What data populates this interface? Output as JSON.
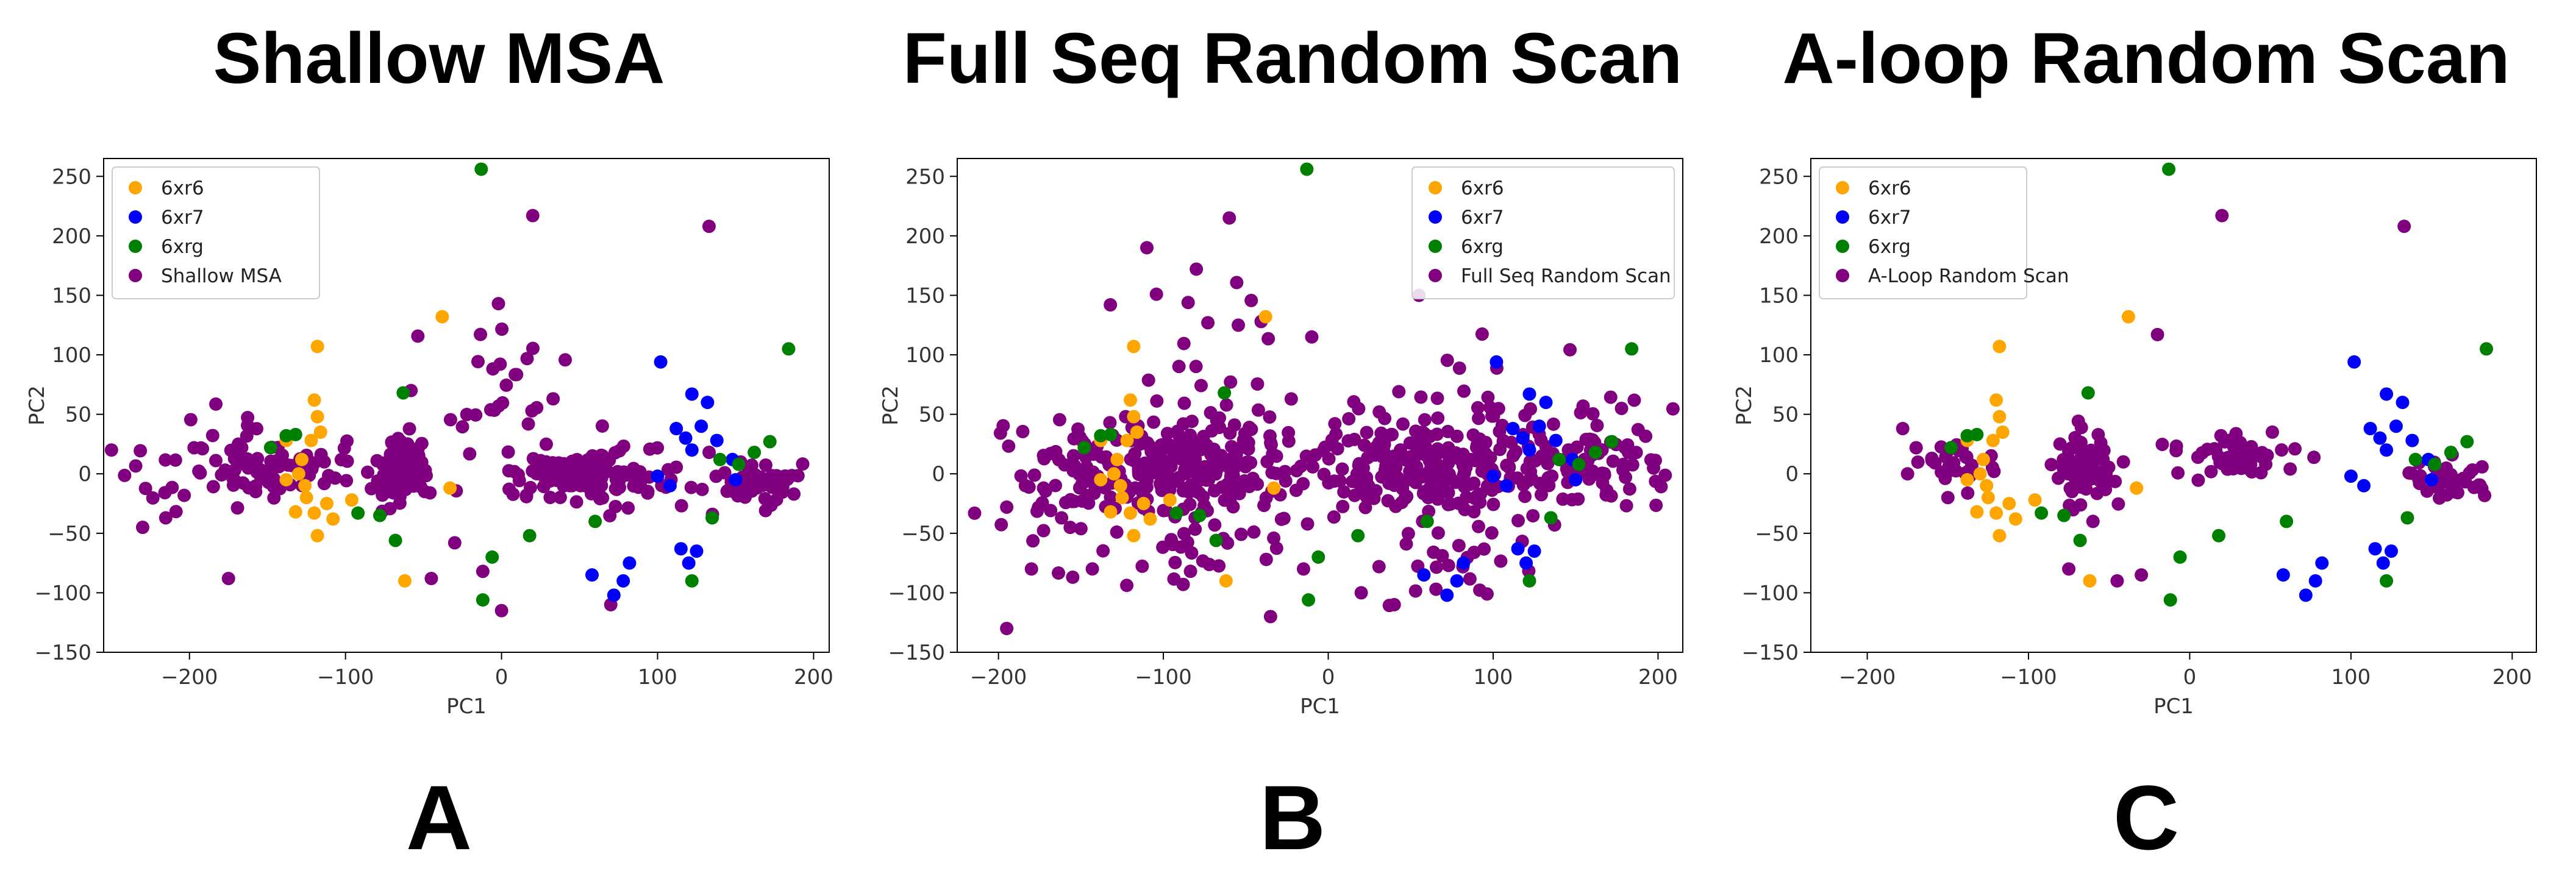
{
  "colors": {
    "6xr6": "#ffa500",
    "6xr7": "#0000ff",
    "6xrg": "#008000",
    "sample": "#800080"
  },
  "chart_data": [
    {
      "type": "scatter",
      "title": "Shallow MSA",
      "panel_label": "A",
      "xlabel": "PC1",
      "ylabel": "PC2",
      "xlim": [
        -255,
        210
      ],
      "ylim": [
        -150,
        265
      ],
      "xticks": [
        -200,
        -100,
        0,
        100,
        200
      ],
      "yticks": [
        -150,
        -100,
        -50,
        0,
        50,
        100,
        150,
        200,
        250
      ],
      "legend_position": "top-left",
      "series": [
        {
          "name": "6xr6",
          "color": "#ffa500",
          "points": [
            [
              -118,
              107
            ],
            [
              -120,
              62
            ],
            [
              -118,
              48
            ],
            [
              -116,
              35
            ],
            [
              -122,
              28
            ],
            [
              -138,
              28
            ],
            [
              -128,
              12
            ],
            [
              -130,
              0
            ],
            [
              -138,
              -5
            ],
            [
              -125,
              -20
            ],
            [
              -132,
              -32
            ],
            [
              -120,
              -33
            ],
            [
              -108,
              -38
            ],
            [
              -118,
              -52
            ],
            [
              -96,
              -22
            ],
            [
              -38,
              132
            ],
            [
              -33,
              -12
            ],
            [
              -62,
              -90
            ],
            [
              -126,
              -10
            ],
            [
              -112,
              -25
            ]
          ]
        },
        {
          "name": "6xr7",
          "color": "#0000ff",
          "points": [
            [
              102,
              94
            ],
            [
              122,
              67
            ],
            [
              132,
              60
            ],
            [
              112,
              38
            ],
            [
              128,
              40
            ],
            [
              138,
              28
            ],
            [
              118,
              30
            ],
            [
              122,
              20
            ],
            [
              148,
              12
            ],
            [
              100,
              -2
            ],
            [
              150,
              -5
            ],
            [
              108,
              -10
            ],
            [
              58,
              -85
            ],
            [
              78,
              -90
            ],
            [
              72,
              -102
            ],
            [
              115,
              -63
            ],
            [
              125,
              -65
            ],
            [
              120,
              -75
            ],
            [
              82,
              -75
            ]
          ]
        },
        {
          "name": "6xrg",
          "color": "#008000",
          "points": [
            [
              -13,
              256
            ],
            [
              184,
              105
            ],
            [
              172,
              27
            ],
            [
              162,
              18
            ],
            [
              140,
              12
            ],
            [
              -148,
              22
            ],
            [
              -138,
              32
            ],
            [
              -132,
              33
            ],
            [
              -63,
              68
            ],
            [
              -68,
              -56
            ],
            [
              -92,
              -33
            ],
            [
              -78,
              -35
            ],
            [
              -12,
              -106
            ],
            [
              -6,
              -70
            ],
            [
              18,
              -52
            ],
            [
              60,
              -40
            ],
            [
              122,
              -90
            ],
            [
              135,
              -37
            ],
            [
              152,
              8
            ]
          ]
        },
        {
          "name": "Shallow MSA",
          "color": "#800080"
        }
      ]
    },
    {
      "type": "scatter",
      "title": "Full Seq Random Scan",
      "panel_label": "B",
      "xlabel": "PC1",
      "ylabel": "PC2",
      "xlim": [
        -225,
        215
      ],
      "ylim": [
        -150,
        265
      ],
      "xticks": [
        -200,
        -100,
        0,
        100,
        200
      ],
      "yticks": [
        -150,
        -100,
        -50,
        0,
        50,
        100,
        150,
        200,
        250
      ],
      "legend_position": "top-right",
      "series": [
        {
          "name": "6xr6",
          "color": "#ffa500",
          "points": [
            [
              -118,
              107
            ],
            [
              -120,
              62
            ],
            [
              -118,
              48
            ],
            [
              -116,
              35
            ],
            [
              -122,
              28
            ],
            [
              -138,
              28
            ],
            [
              -128,
              12
            ],
            [
              -130,
              0
            ],
            [
              -138,
              -5
            ],
            [
              -125,
              -20
            ],
            [
              -132,
              -32
            ],
            [
              -120,
              -33
            ],
            [
              -108,
              -38
            ],
            [
              -118,
              -52
            ],
            [
              -96,
              -22
            ],
            [
              -38,
              132
            ],
            [
              -33,
              -12
            ],
            [
              -62,
              -90
            ],
            [
              -126,
              -10
            ],
            [
              -112,
              -25
            ]
          ]
        },
        {
          "name": "6xr7",
          "color": "#0000ff",
          "points": [
            [
              102,
              94
            ],
            [
              122,
              67
            ],
            [
              132,
              60
            ],
            [
              112,
              38
            ],
            [
              128,
              40
            ],
            [
              138,
              28
            ],
            [
              118,
              30
            ],
            [
              122,
              20
            ],
            [
              148,
              12
            ],
            [
              100,
              -2
            ],
            [
              150,
              -5
            ],
            [
              108,
              -10
            ],
            [
              58,
              -85
            ],
            [
              78,
              -90
            ],
            [
              72,
              -102
            ],
            [
              115,
              -63
            ],
            [
              125,
              -65
            ],
            [
              120,
              -75
            ],
            [
              82,
              -75
            ]
          ]
        },
        {
          "name": "6xrg",
          "color": "#008000",
          "points": [
            [
              -13,
              256
            ],
            [
              184,
              105
            ],
            [
              172,
              27
            ],
            [
              162,
              18
            ],
            [
              140,
              12
            ],
            [
              -148,
              22
            ],
            [
              -138,
              32
            ],
            [
              -132,
              33
            ],
            [
              -63,
              68
            ],
            [
              -68,
              -56
            ],
            [
              -92,
              -33
            ],
            [
              -78,
              -35
            ],
            [
              -12,
              -106
            ],
            [
              -6,
              -70
            ],
            [
              18,
              -52
            ],
            [
              60,
              -40
            ],
            [
              122,
              -90
            ],
            [
              135,
              -37
            ],
            [
              152,
              8
            ]
          ]
        },
        {
          "name": "Full Seq Random Scan",
          "color": "#800080"
        }
      ]
    },
    {
      "type": "scatter",
      "title": "A-loop Random Scan",
      "panel_label": "C",
      "xlabel": "PC1",
      "ylabel": "PC2",
      "xlim": [
        -235,
        215
      ],
      "ylim": [
        -150,
        265
      ],
      "xticks": [
        -200,
        -100,
        0,
        100,
        200
      ],
      "yticks": [
        -150,
        -100,
        -50,
        0,
        50,
        100,
        150,
        200,
        250
      ],
      "legend_position": "top-left",
      "series": [
        {
          "name": "6xr6",
          "color": "#ffa500",
          "points": [
            [
              -118,
              107
            ],
            [
              -120,
              62
            ],
            [
              -118,
              48
            ],
            [
              -116,
              35
            ],
            [
              -122,
              28
            ],
            [
              -138,
              28
            ],
            [
              -128,
              12
            ],
            [
              -130,
              0
            ],
            [
              -138,
              -5
            ],
            [
              -125,
              -20
            ],
            [
              -132,
              -32
            ],
            [
              -120,
              -33
            ],
            [
              -108,
              -38
            ],
            [
              -118,
              -52
            ],
            [
              -96,
              -22
            ],
            [
              -38,
              132
            ],
            [
              -33,
              -12
            ],
            [
              -62,
              -90
            ],
            [
              -126,
              -10
            ],
            [
              -112,
              -25
            ]
          ]
        },
        {
          "name": "6xr7",
          "color": "#0000ff",
          "points": [
            [
              102,
              94
            ],
            [
              122,
              67
            ],
            [
              132,
              60
            ],
            [
              112,
              38
            ],
            [
              128,
              40
            ],
            [
              138,
              28
            ],
            [
              118,
              30
            ],
            [
              122,
              20
            ],
            [
              148,
              12
            ],
            [
              100,
              -2
            ],
            [
              150,
              -5
            ],
            [
              108,
              -10
            ],
            [
              58,
              -85
            ],
            [
              78,
              -90
            ],
            [
              72,
              -102
            ],
            [
              115,
              -63
            ],
            [
              125,
              -65
            ],
            [
              120,
              -75
            ],
            [
              82,
              -75
            ]
          ]
        },
        {
          "name": "6xrg",
          "color": "#008000",
          "points": [
            [
              -13,
              256
            ],
            [
              184,
              105
            ],
            [
              172,
              27
            ],
            [
              162,
              18
            ],
            [
              140,
              12
            ],
            [
              -148,
              22
            ],
            [
              -138,
              32
            ],
            [
              -132,
              33
            ],
            [
              -63,
              68
            ],
            [
              -68,
              -56
            ],
            [
              -92,
              -33
            ],
            [
              -78,
              -35
            ],
            [
              -12,
              -106
            ],
            [
              -6,
              -70
            ],
            [
              18,
              -52
            ],
            [
              60,
              -40
            ],
            [
              122,
              -90
            ],
            [
              135,
              -37
            ],
            [
              152,
              8
            ]
          ]
        },
        {
          "name": "A-Loop Random Scan",
          "color": "#800080"
        }
      ]
    }
  ]
}
